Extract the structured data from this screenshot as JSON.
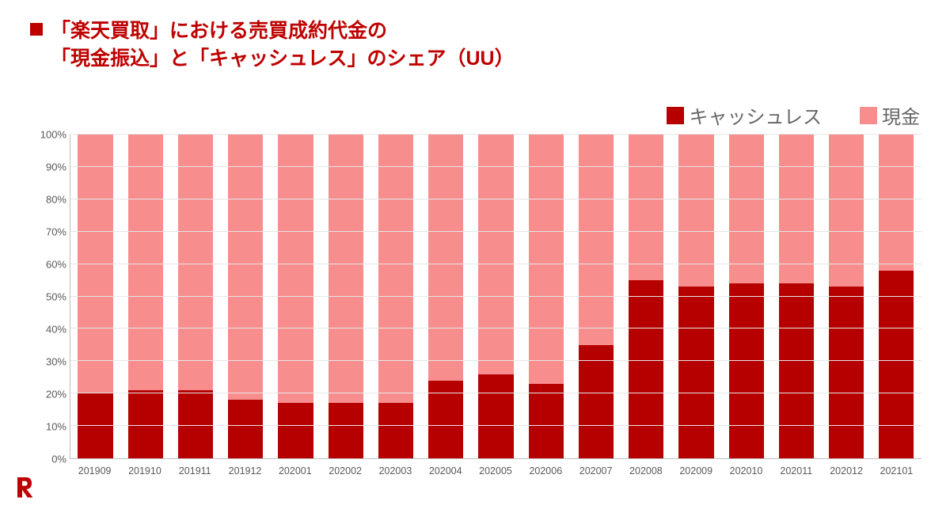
{
  "title": {
    "line1": "「楽天買取」における売買成約代金の",
    "line2": "「現金振込」と「キャッシュレス」のシェア（UU）",
    "color": "#bf0000",
    "bullet_color": "#bf0000",
    "fontsize": 25
  },
  "legend": {
    "items": [
      {
        "label": "キャッシュレス",
        "color": "#b60000"
      },
      {
        "label": "現金",
        "color": "#f78d8d"
      }
    ],
    "fontsize": 24,
    "text_color": "#666666"
  },
  "chart": {
    "type": "stacked-bar-100",
    "background_color": "#ffffff",
    "grid_color": "#e6e6e6",
    "axis_color": "#bfbfbf",
    "bar_width": 0.7,
    "ylim": [
      0,
      100
    ],
    "ytick_step": 10,
    "ytick_suffix": "%",
    "tick_fontsize": 13,
    "tick_color": "#595959",
    "series": [
      {
        "name": "cashless",
        "color": "#b60000",
        "position": "bottom"
      },
      {
        "name": "cash",
        "color": "#f78d8d",
        "position": "top"
      }
    ],
    "categories": [
      "201909",
      "201910",
      "201911",
      "201912",
      "202001",
      "202002",
      "202003",
      "202004",
      "202005",
      "202006",
      "202007",
      "202008",
      "202009",
      "202010",
      "202011",
      "202012",
      "202101"
    ],
    "values": {
      "cashless": [
        20,
        21,
        21,
        18,
        17,
        17,
        17,
        24,
        26,
        23,
        35,
        55,
        53,
        54,
        54,
        53,
        58
      ],
      "cash": [
        80,
        79,
        79,
        82,
        83,
        83,
        83,
        76,
        74,
        77,
        65,
        45,
        47,
        46,
        46,
        47,
        42
      ]
    }
  },
  "logo": {
    "label": "rakuten-logo",
    "color": "#bf0000"
  }
}
